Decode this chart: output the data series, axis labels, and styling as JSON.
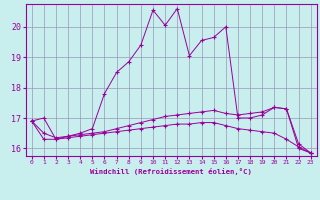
{
  "xlabel": "Windchill (Refroidissement éolien,°C)",
  "background_color": "#c8eeee",
  "line_color": "#990099",
  "grid_color": "#9999bb",
  "xlim": [
    -0.5,
    23.5
  ],
  "ylim": [
    15.75,
    20.75
  ],
  "yticks": [
    16,
    17,
    18,
    19,
    20
  ],
  "xticks": [
    0,
    1,
    2,
    3,
    4,
    5,
    6,
    7,
    8,
    9,
    10,
    11,
    12,
    13,
    14,
    15,
    16,
    17,
    18,
    19,
    20,
    21,
    22,
    23
  ],
  "line1_x": [
    0,
    1,
    2,
    3,
    4,
    5,
    6,
    7,
    8,
    9,
    10,
    11,
    12,
    13,
    14,
    15,
    16,
    17,
    18,
    19,
    20,
    21,
    22,
    23
  ],
  "line1_y": [
    16.9,
    17.0,
    16.3,
    16.4,
    16.5,
    16.65,
    17.8,
    18.5,
    18.85,
    19.4,
    20.55,
    20.05,
    20.6,
    19.05,
    19.55,
    19.65,
    20.0,
    17.0,
    17.0,
    17.1,
    17.35,
    17.3,
    16.0,
    15.85
  ],
  "line2_x": [
    0,
    1,
    2,
    3,
    4,
    5,
    6,
    7,
    8,
    9,
    10,
    11,
    12,
    13,
    14,
    15,
    16,
    17,
    18,
    19,
    20,
    21,
    22,
    23
  ],
  "line2_y": [
    16.9,
    16.5,
    16.35,
    16.4,
    16.45,
    16.5,
    16.55,
    16.65,
    16.75,
    16.85,
    16.95,
    17.05,
    17.1,
    17.15,
    17.2,
    17.25,
    17.15,
    17.1,
    17.15,
    17.2,
    17.35,
    17.3,
    16.15,
    15.85
  ],
  "line3_x": [
    0,
    1,
    2,
    3,
    4,
    5,
    6,
    7,
    8,
    9,
    10,
    11,
    12,
    13,
    14,
    15,
    16,
    17,
    18,
    19,
    20,
    21,
    22,
    23
  ],
  "line3_y": [
    16.9,
    16.3,
    16.3,
    16.35,
    16.4,
    16.45,
    16.5,
    16.55,
    16.6,
    16.65,
    16.7,
    16.75,
    16.8,
    16.8,
    16.85,
    16.85,
    16.75,
    16.65,
    16.6,
    16.55,
    16.5,
    16.3,
    16.05,
    15.85
  ]
}
